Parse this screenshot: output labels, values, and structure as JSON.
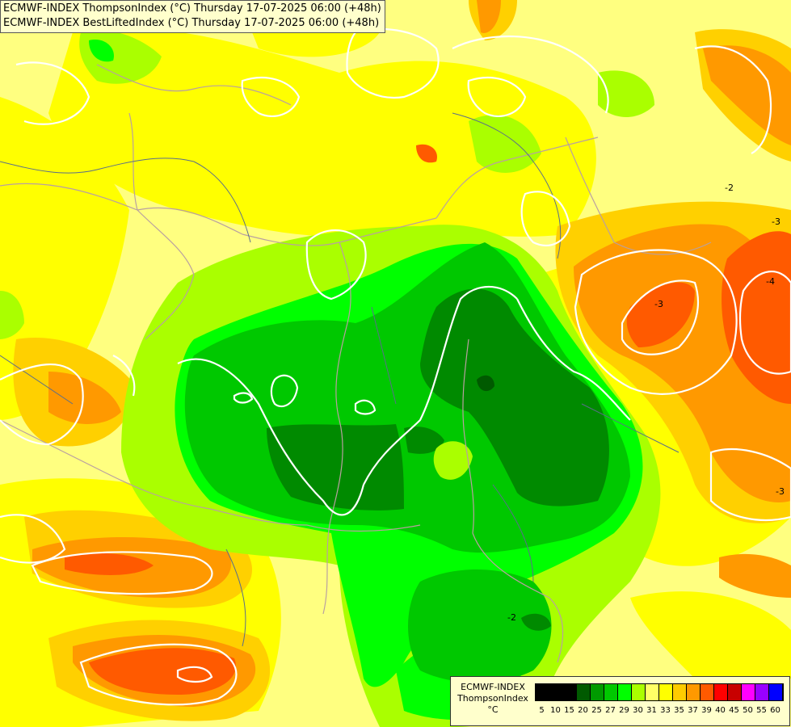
{
  "titles": {
    "line1": "ECMWF-INDEX ThompsonIndex (°C) Thursday 17-07-2025 06:00 (+48h)",
    "line2": "ECMWF-INDEX BestLiftedIndex (°C) Thursday 17-07-2025 06:00 (+48h)"
  },
  "legend": {
    "model": "ECMWF-INDEX",
    "parameter": "ThompsonIndex",
    "unit": "°C",
    "ticks": [
      "5",
      "10",
      "15",
      "20",
      "25",
      "27",
      "29",
      "30",
      "31",
      "33",
      "35",
      "37",
      "39",
      "40",
      "45",
      "50",
      "55",
      "60"
    ],
    "colors": [
      "#000000",
      "#000000",
      "#000000",
      "#005a00",
      "#009a00",
      "#00c800",
      "#00ff00",
      "#aaff00",
      "#ffff66",
      "#ffff00",
      "#ffcc00",
      "#ff9900",
      "#ff5a00",
      "#ff0000",
      "#c80000",
      "#ff00ff",
      "#9900ff",
      "#0000ff"
    ]
  },
  "contour_labels": [
    "-3",
    "-3",
    "-4",
    "-3",
    "-2",
    "-2"
  ],
  "colors": {
    "lightyellow": "#ffff80",
    "yellow": "#ffff00",
    "gold": "#ffd000",
    "orange": "#ff9900",
    "redorange": "#ff5a00",
    "yellowgreen": "#aaff00",
    "lime": "#00ff00",
    "green": "#00c800",
    "darkgreen": "#008a00",
    "deepgreen": "#005a00"
  }
}
